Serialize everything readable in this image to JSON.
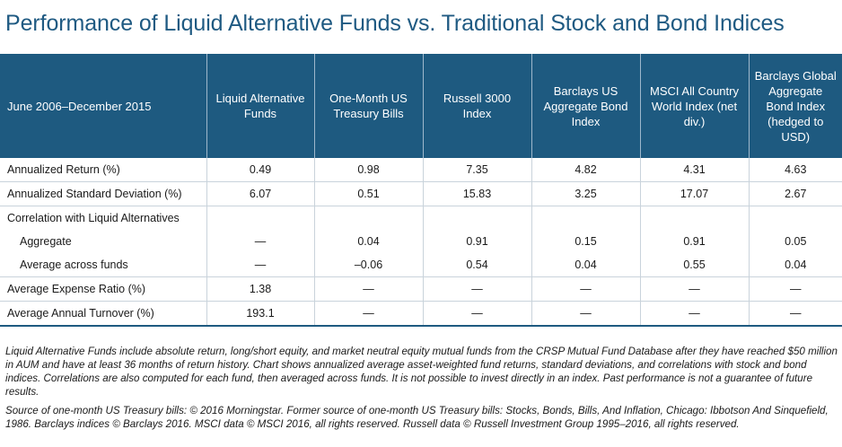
{
  "title": "Performance of Liquid Alternative Funds vs. Traditional Stock and Bond Indices",
  "table": {
    "period_header": "June 2006–December 2015",
    "columns": [
      "Liquid Alternative Funds",
      "One-Month US Treasury Bills",
      "Russell 3000 Index",
      "Barclays US Aggregate Bond Index",
      "MSCI All Country World Index (net div.)",
      "Barclays Global Aggregate Bond Index (hedged to USD)"
    ],
    "rows": [
      {
        "label": "Annualized Return (%)",
        "values": [
          "0.49",
          "0.98",
          "7.35",
          "4.82",
          "4.31",
          "4.63"
        ]
      },
      {
        "label": "Annualized Standard Deviation (%)",
        "values": [
          "6.07",
          "0.51",
          "15.83",
          "3.25",
          "17.07",
          "2.67"
        ]
      },
      {
        "label": "Correlation with Liquid Alternatives",
        "values": [
          "",
          "",
          "",
          "",
          "",
          ""
        ]
      },
      {
        "label": "Aggregate",
        "values": [
          "—",
          "0.04",
          "0.91",
          "0.15",
          "0.91",
          "0.05"
        ]
      },
      {
        "label": "Average across funds",
        "values": [
          "—",
          "–0.06",
          "0.54",
          "0.04",
          "0.55",
          "0.04"
        ]
      },
      {
        "label": "Average Expense Ratio (%)",
        "values": [
          "1.38",
          "—",
          "—",
          "—",
          "—",
          "—"
        ]
      },
      {
        "label": "Average Annual Turnover (%)",
        "values": [
          "193.1",
          "—",
          "—",
          "—",
          "—",
          "—"
        ]
      }
    ]
  },
  "notes": {
    "description": "Liquid Alternative Funds include absolute return, long/short equity, and market neutral equity mutual funds from the CRSP Mutual Fund Database after they have reached $50 million in AUM and have at least 36 months of return history. Chart shows annualized average asset-weighted fund returns, standard deviations, and correlations with stock and bond indices. Correlations are also computed for each fund, then averaged across funds. It is not possible to invest directly in an index.",
    "disclaimer": "Past performance is not a guarantee of future results.",
    "sources": "Source of one-month US Treasury bills: © 2016 Morningstar. Former source of one-month US Treasury bills: Stocks, Bonds, Bills, And Inflation, Chicago: Ibbotson And Sinquefield, 1986. Barclays indices © Barclays 2016. MSCI data © MSCI 2016, all rights reserved. Russell data © Russell Investment Group 1995–2016, all rights reserved."
  }
}
